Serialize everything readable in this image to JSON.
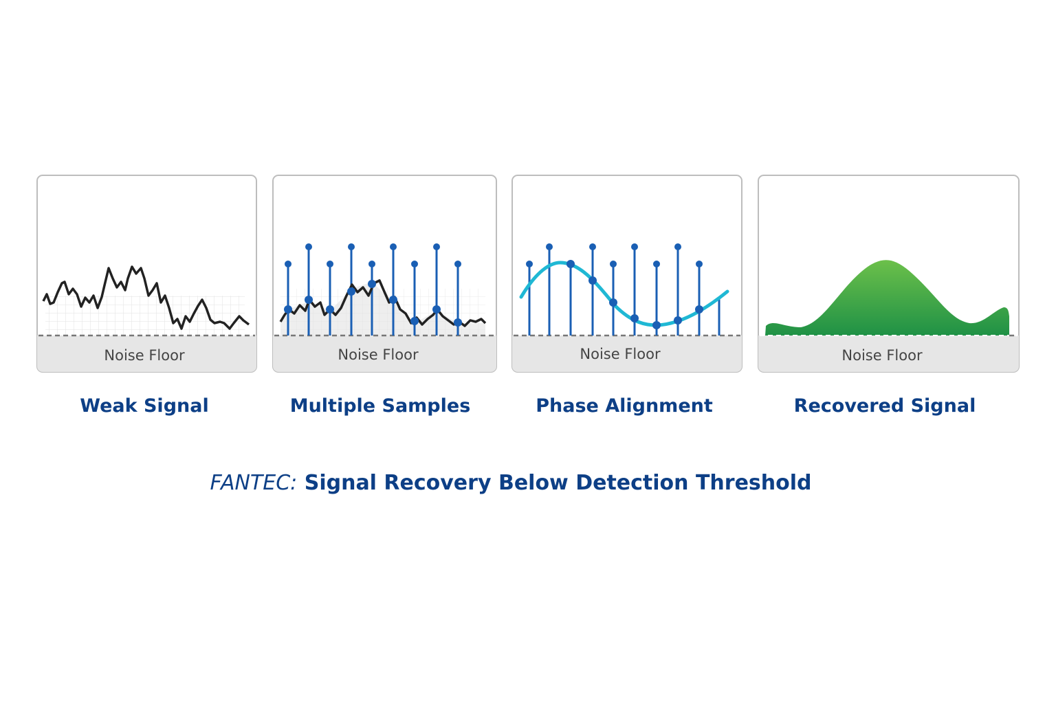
{
  "panels": [
    {
      "noise_label": "Noise Floor",
      "title": "Weak Signal"
    },
    {
      "noise_label": "Noise Floor",
      "title": "Multiple Samples"
    },
    {
      "noise_label": "Noise Floor",
      "title": "Phase Alignment"
    },
    {
      "noise_label": "Noise Floor",
      "title": "Recovered Signal"
    }
  ],
  "caption": {
    "prefix": "FANTEC:",
    "text": "Signal Recovery Below Detection Threshold"
  }
}
